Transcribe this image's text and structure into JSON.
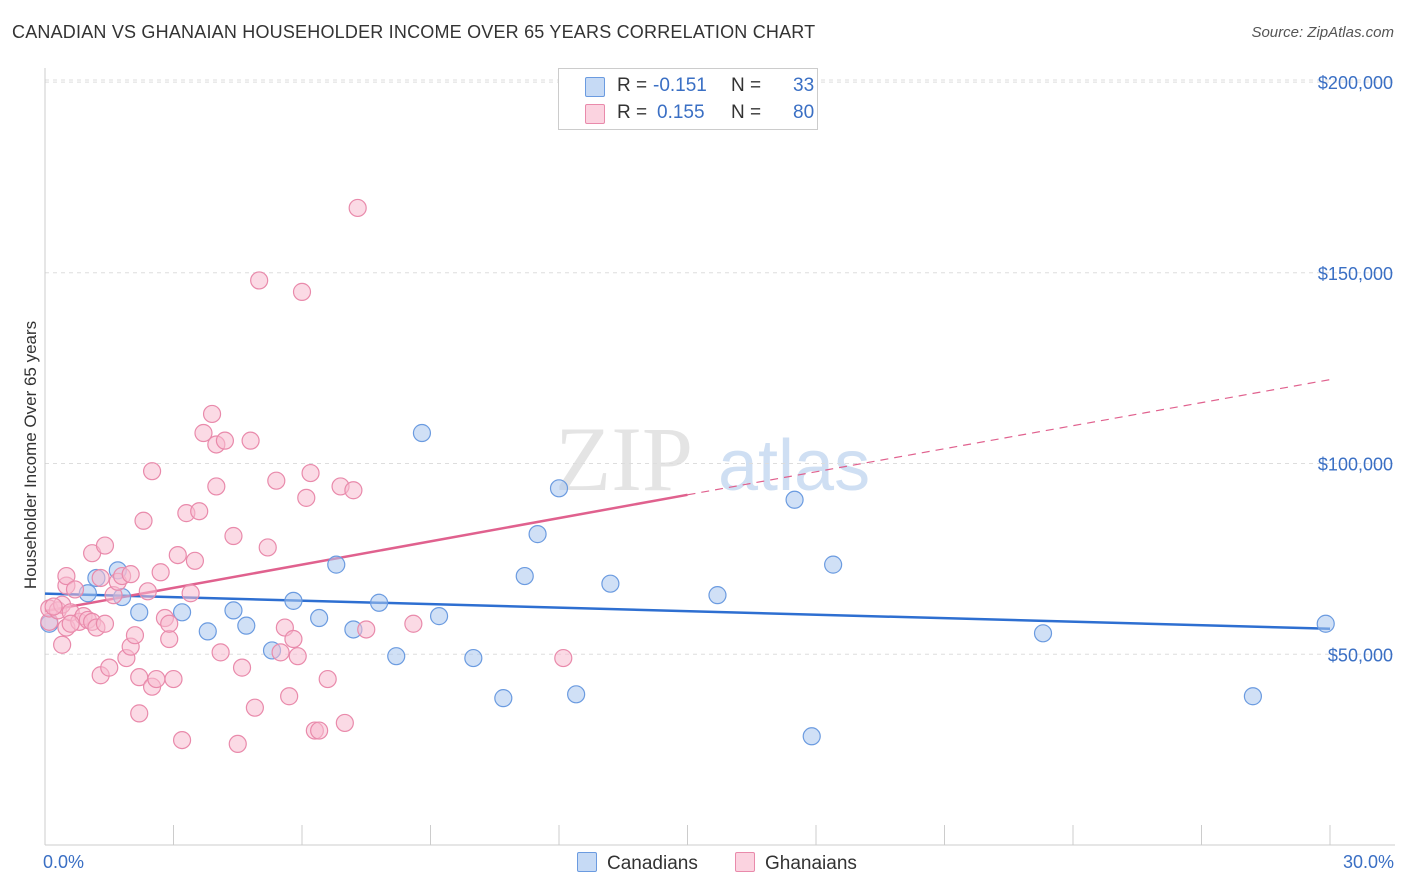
{
  "title": "CANADIAN VS GHANAIAN HOUSEHOLDER INCOME OVER 65 YEARS CORRELATION CHART",
  "source": "Source: ZipAtlas.com",
  "watermark": {
    "part1": "ZIP",
    "part2": "atlas"
  },
  "legend": {
    "rows": [
      {
        "r_label": "R =",
        "r_value": "-0.151",
        "n_label": "N =",
        "n_value": "33",
        "color": "#a9c6ef",
        "stroke": "#6b9be0"
      },
      {
        "r_label": "R =",
        "r_value": "0.155",
        "n_label": "N =",
        "n_value": "80",
        "color": "#f7bcd0",
        "stroke": "#e98aab"
      }
    ]
  },
  "bottom_legend": {
    "canadians": "Canadians",
    "ghanaians": "Ghanaians"
  },
  "chart_data": {
    "type": "scatter",
    "title": "CANADIAN VS GHANAIAN HOUSEHOLDER INCOME OVER 65 YEARS CORRELATION CHART",
    "ylabel": "Householder Income Over 65 years",
    "xlabel": "",
    "x_tick_labels": [
      "0.0%",
      "30.0%"
    ],
    "y_tick_labels": [
      "$50,000",
      "$100,000",
      "$150,000",
      "$200,000"
    ],
    "y_ticks": [
      50000,
      100000,
      150000,
      200000
    ],
    "xlim": [
      0,
      30
    ],
    "ylim": [
      0,
      205000
    ],
    "grid": true,
    "series": [
      {
        "name": "Canadians",
        "color": "#6b9be0",
        "fill": "#a9c6ef",
        "line_color": "#2e6fd1",
        "trend": {
          "x1": 0,
          "y1": 65900,
          "x2": 30,
          "y2": 56700,
          "dashed_from": null
        },
        "points": [
          [
            0.1,
            58000
          ],
          [
            1.2,
            70000
          ],
          [
            1.7,
            72000
          ],
          [
            1.8,
            65000
          ],
          [
            2.2,
            61000
          ],
          [
            3.2,
            61000
          ],
          [
            3.8,
            56000
          ],
          [
            4.4,
            61500
          ],
          [
            4.7,
            57500
          ],
          [
            5.3,
            51000
          ],
          [
            5.8,
            64000
          ],
          [
            6.4,
            59500
          ],
          [
            6.8,
            73500
          ],
          [
            7.2,
            56500
          ],
          [
            7.8,
            63500
          ],
          [
            8.2,
            49500
          ],
          [
            8.8,
            108000
          ],
          [
            9.2,
            60000
          ],
          [
            10.0,
            49000
          ],
          [
            10.7,
            38500
          ],
          [
            11.2,
            70500
          ],
          [
            11.5,
            81500
          ],
          [
            12.0,
            93500
          ],
          [
            12.4,
            39500
          ],
          [
            13.2,
            68500
          ],
          [
            15.7,
            65500
          ],
          [
            17.5,
            90500
          ],
          [
            17.9,
            28500
          ],
          [
            18.4,
            73500
          ],
          [
            23.3,
            55500
          ],
          [
            28.2,
            39000
          ],
          [
            29.9,
            58000
          ],
          [
            1.0,
            66000
          ]
        ]
      },
      {
        "name": "Ghanaians",
        "color": "#e98aab",
        "fill": "#f7bcd0",
        "line_color": "#e0618e",
        "trend": {
          "x1": 0,
          "y1": 61300,
          "x2": 15.0,
          "y2": 91800,
          "x3": 30,
          "y3": 122000
        },
        "points": [
          [
            0.1,
            58500
          ],
          [
            0.1,
            62000
          ],
          [
            0.3,
            61500
          ],
          [
            0.4,
            63000
          ],
          [
            0.4,
            52500
          ],
          [
            0.5,
            57000
          ],
          [
            0.5,
            68000
          ],
          [
            0.5,
            70500
          ],
          [
            0.6,
            61000
          ],
          [
            0.7,
            67000
          ],
          [
            0.8,
            58500
          ],
          [
            0.9,
            60000
          ],
          [
            1.0,
            59000
          ],
          [
            1.1,
            76500
          ],
          [
            1.1,
            58500
          ],
          [
            1.2,
            57000
          ],
          [
            1.3,
            70000
          ],
          [
            1.3,
            44500
          ],
          [
            1.4,
            78500
          ],
          [
            1.4,
            58000
          ],
          [
            1.5,
            46500
          ],
          [
            1.6,
            65500
          ],
          [
            1.7,
            69000
          ],
          [
            1.8,
            70500
          ],
          [
            1.9,
            49000
          ],
          [
            2.0,
            52000
          ],
          [
            2.0,
            71000
          ],
          [
            2.1,
            55000
          ],
          [
            2.2,
            44000
          ],
          [
            2.2,
            34500
          ],
          [
            2.3,
            85000
          ],
          [
            2.4,
            66500
          ],
          [
            2.5,
            41500
          ],
          [
            2.5,
            98000
          ],
          [
            2.6,
            43500
          ],
          [
            2.7,
            71500
          ],
          [
            2.8,
            59500
          ],
          [
            2.9,
            54000
          ],
          [
            2.9,
            58000
          ],
          [
            3.0,
            43500
          ],
          [
            3.1,
            76000
          ],
          [
            3.2,
            27500
          ],
          [
            3.3,
            87000
          ],
          [
            3.4,
            66000
          ],
          [
            3.5,
            74500
          ],
          [
            3.6,
            87500
          ],
          [
            3.7,
            108000
          ],
          [
            3.9,
            113000
          ],
          [
            4.0,
            94000
          ],
          [
            4.0,
            105000
          ],
          [
            4.1,
            50500
          ],
          [
            4.2,
            106000
          ],
          [
            4.4,
            81000
          ],
          [
            4.5,
            26500
          ],
          [
            4.6,
            46500
          ],
          [
            4.8,
            106000
          ],
          [
            4.9,
            36000
          ],
          [
            5.0,
            148000
          ],
          [
            5.2,
            78000
          ],
          [
            5.4,
            95500
          ],
          [
            5.5,
            50500
          ],
          [
            5.6,
            57000
          ],
          [
            5.7,
            39000
          ],
          [
            5.8,
            54000
          ],
          [
            5.9,
            49500
          ],
          [
            6.0,
            145000
          ],
          [
            6.1,
            91000
          ],
          [
            6.2,
            97500
          ],
          [
            6.3,
            30000
          ],
          [
            6.4,
            30000
          ],
          [
            6.6,
            43500
          ],
          [
            6.9,
            94000
          ],
          [
            7.0,
            32000
          ],
          [
            7.2,
            93000
          ],
          [
            7.3,
            167000
          ],
          [
            7.5,
            56500
          ],
          [
            8.6,
            58000
          ],
          [
            12.1,
            49000
          ],
          [
            0.2,
            62500
          ],
          [
            0.6,
            58000
          ]
        ]
      }
    ]
  }
}
